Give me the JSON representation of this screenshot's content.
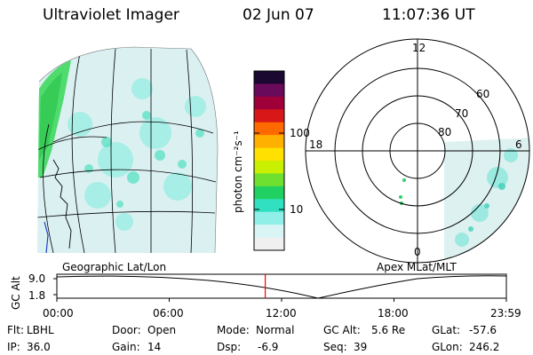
{
  "header": {
    "title": "Ultraviolet Imager",
    "date": "02 Jun 07",
    "time": "11:07:36 UT"
  },
  "left_panel": {
    "caption": "Geographic Lat/Lon"
  },
  "colorbar": {
    "unit_label": "photon cm⁻²s⁻¹",
    "ticks": [
      "100",
      "10"
    ],
    "colors": [
      "#1a0830",
      "#6a0a5a",
      "#a0003a",
      "#d81818",
      "#ff6a00",
      "#ffb000",
      "#ffe000",
      "#c8f000",
      "#70e030",
      "#20d060",
      "#30e0c0",
      "#90f0e8",
      "#d8f4f4",
      "#f0f0f0"
    ]
  },
  "right_panel": {
    "caption": "Apex MLat/MLT",
    "mlt_labels": {
      "top": "12",
      "left": "18",
      "right": "6",
      "bottom": "0"
    },
    "mlat_labels": [
      "60",
      "70",
      "80"
    ]
  },
  "timeline": {
    "ylabel": "GC Alt",
    "y_ticks": [
      "9.0",
      "1.8"
    ],
    "x_ticks": [
      "00:00",
      "06:00",
      "12:00",
      "18:00",
      "23:59"
    ],
    "current_time_fraction": 0.4636,
    "marker_color": "#ff0000"
  },
  "footer": {
    "rows": [
      [
        {
          "label": "Flt:",
          "value": "LBHL"
        },
        {
          "label": "Door:",
          "value": "Open"
        },
        {
          "label": "Mode:",
          "value": "Normal"
        },
        {
          "label": "GC Alt:",
          "value": "5.6 Re"
        },
        {
          "label": "GLat:",
          "value": "-57.6"
        }
      ],
      [
        {
          "label": "IP:",
          "value": "36.0"
        },
        {
          "label": "Gain:",
          "value": "14"
        },
        {
          "label": "Dsp:",
          "value": "-6.9"
        },
        {
          "label": "Seq:",
          "value": "39"
        },
        {
          "label": "GLon:",
          "value": "246.2"
        }
      ]
    ]
  }
}
